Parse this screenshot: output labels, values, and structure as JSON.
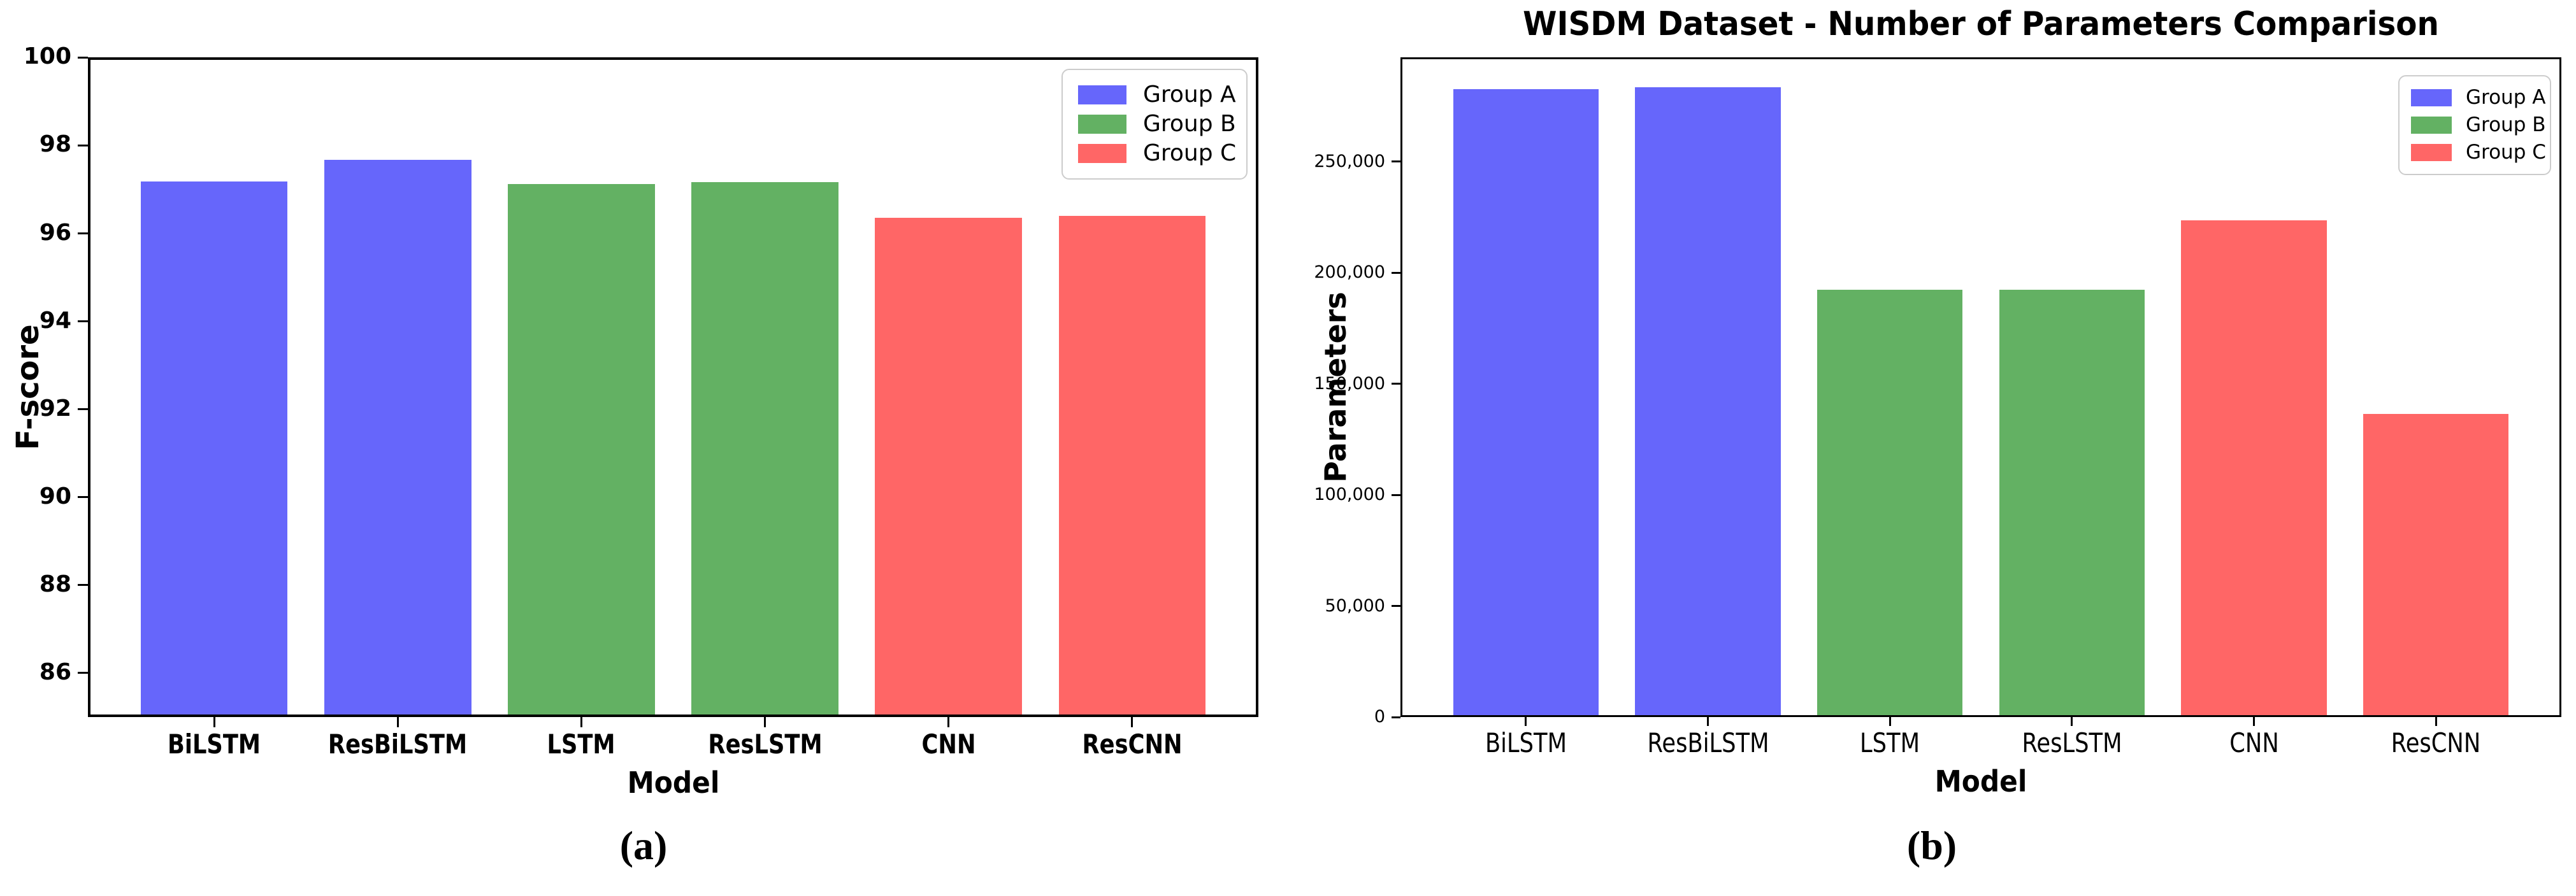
{
  "captions": [
    "(a)",
    "(b)"
  ],
  "legend": {
    "items": [
      {
        "label": "Group A",
        "color": "#6666FB"
      },
      {
        "label": "Group B",
        "color": "#63B163"
      },
      {
        "label": "Group C",
        "color": "#FF6666"
      }
    ]
  },
  "chart_data": [
    {
      "type": "bar",
      "title": "",
      "xlabel": "Model",
      "ylabel": "F-score",
      "categories": [
        "BiLSTM",
        "ResBiLSTM",
        "LSTM",
        "ResLSTM",
        "CNN",
        "ResCNN"
      ],
      "values": [
        97.22,
        97.71,
        97.15,
        97.2,
        96.38,
        96.42
      ],
      "groups": [
        "Group A",
        "Group A",
        "Group B",
        "Group B",
        "Group C",
        "Group C"
      ],
      "ylim": [
        85,
        100
      ],
      "yticks": [
        86,
        88,
        90,
        92,
        94,
        96,
        98,
        100
      ],
      "ytick_format": "plain",
      "grid": false,
      "legend_position": "top-right",
      "legend_labels": [
        "Group A",
        "Group B",
        "Group C"
      ]
    },
    {
      "type": "bar",
      "title": "WISDM Dataset - Number of Parameters Comparison",
      "xlabel": "Model",
      "ylabel": "Parameters",
      "categories": [
        "BiLSTM",
        "ResBiLSTM",
        "LSTM",
        "ResLSTM",
        "CNN",
        "ResCNN"
      ],
      "values": [
        283500,
        284300,
        192500,
        192500,
        224000,
        136500
      ],
      "groups": [
        "Group A",
        "Group A",
        "Group B",
        "Group B",
        "Group C",
        "Group C"
      ],
      "ylim": [
        0,
        297000
      ],
      "yticks": [
        0,
        50000,
        100000,
        150000,
        200000,
        250000
      ],
      "ytick_format": "comma",
      "grid": false,
      "legend_position": "top-right",
      "legend_labels": [
        "Group A",
        "Group B",
        "Group C"
      ]
    }
  ]
}
